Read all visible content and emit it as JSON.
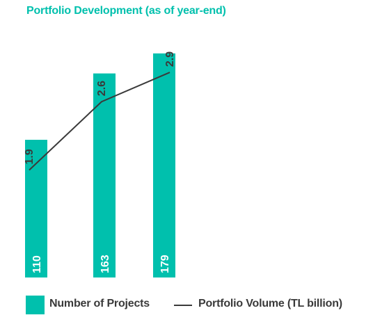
{
  "chart_data": {
    "type": "bar",
    "title": "Portfolio Development (as of year-end)",
    "categories": [
      "",
      "",
      ""
    ],
    "series": [
      {
        "name": "Number of Projects",
        "type": "bar",
        "values": [
          110,
          163,
          179
        ],
        "color": "#00c0ad"
      },
      {
        "name": "Portfolio Volume (TL billion)",
        "type": "line",
        "values": [
          1.9,
          2.6,
          2.9
        ],
        "color": "#3a3a3a"
      }
    ],
    "bar_axis_range": [
      0,
      190
    ],
    "line_axis_range": [
      0.8,
      3.1
    ],
    "grid": false,
    "legend": "bottom"
  }
}
